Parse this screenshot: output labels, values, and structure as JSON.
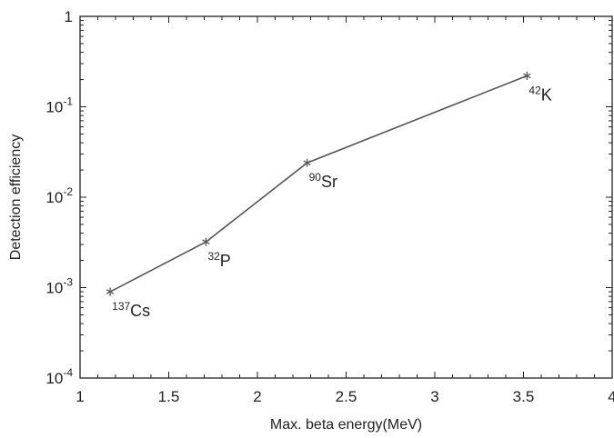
{
  "chart_data": {
    "type": "line",
    "title": "",
    "xlabel": "Max. beta energy(MeV)",
    "ylabel": "Detection efficiency",
    "xlim": [
      1,
      4
    ],
    "ylim": [
      0.0001,
      1
    ],
    "yscale": "log",
    "grid": false,
    "legend": "none",
    "marker": "star",
    "x_ticks": [
      1,
      1.5,
      2,
      2.5,
      3,
      3.5,
      4
    ],
    "x_tick_labels": [
      "1",
      "1.5",
      "2",
      "2.5",
      "3",
      "3.5",
      "4"
    ],
    "y_ticks": [
      {
        "value": 1,
        "base": "1",
        "exp": ""
      },
      {
        "value": 0.1,
        "base": "10",
        "exp": "-1"
      },
      {
        "value": 0.01,
        "base": "10",
        "exp": "-2"
      },
      {
        "value": 0.001,
        "base": "10",
        "exp": "-3"
      },
      {
        "value": 0.0001,
        "base": "10",
        "exp": "-4"
      }
    ],
    "series": [
      {
        "x": [
          1.17,
          1.71,
          2.28,
          3.52
        ],
        "y": [
          0.0009,
          0.0032,
          0.024,
          0.22
        ],
        "point_labels": [
          {
            "mass": "137",
            "symbol": "Cs"
          },
          {
            "mass": "32",
            "symbol": "P"
          },
          {
            "mass": "90",
            "symbol": "Sr"
          },
          {
            "mass": "42",
            "symbol": "K"
          }
        ]
      }
    ],
    "colors": {
      "line": "#555555",
      "axis": "#222222",
      "text": "#222222"
    }
  }
}
